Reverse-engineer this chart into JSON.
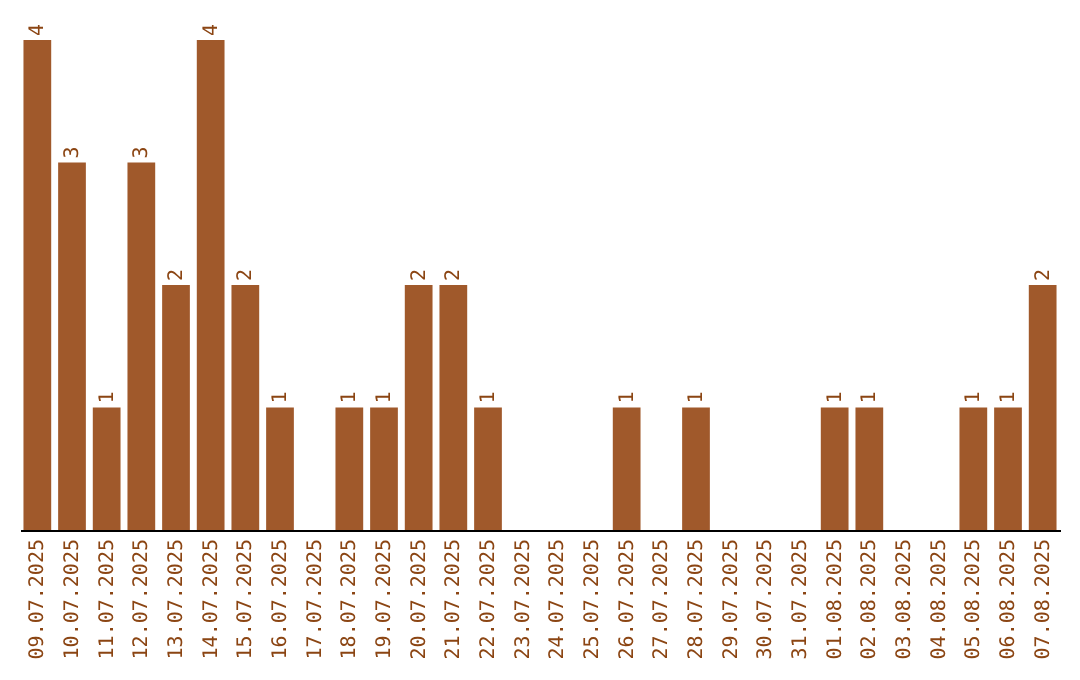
{
  "chart_data": {
    "type": "bar",
    "categories": [
      "09.07.2025",
      "10.07.2025",
      "11.07.2025",
      "12.07.2025",
      "13.07.2025",
      "14.07.2025",
      "15.07.2025",
      "16.07.2025",
      "17.07.2025",
      "18.07.2025",
      "19.07.2025",
      "20.07.2025",
      "21.07.2025",
      "22.07.2025",
      "23.07.2025",
      "24.07.2025",
      "25.07.2025",
      "26.07.2025",
      "27.07.2025",
      "28.07.2025",
      "29.07.2025",
      "30.07.2025",
      "31.07.2025",
      "01.08.2025",
      "02.08.2025",
      "03.08.2025",
      "04.08.2025",
      "05.08.2025",
      "06.08.2025",
      "07.08.2025"
    ],
    "values": [
      4,
      3,
      1,
      3,
      2,
      4,
      2,
      1,
      0,
      1,
      1,
      2,
      2,
      1,
      0,
      0,
      0,
      1,
      0,
      1,
      0,
      0,
      0,
      1,
      1,
      0,
      0,
      1,
      1,
      2
    ],
    "value_labels": [
      "4",
      "3",
      "1",
      "3",
      "2",
      "4",
      "2",
      "1",
      null,
      "1",
      "1",
      "2",
      "2",
      "1",
      null,
      null,
      null,
      "1",
      null,
      "1",
      null,
      null,
      null,
      "1",
      "1",
      null,
      null,
      "1",
      "1",
      "2"
    ],
    "color": "#a0592b",
    "grid": false
  }
}
